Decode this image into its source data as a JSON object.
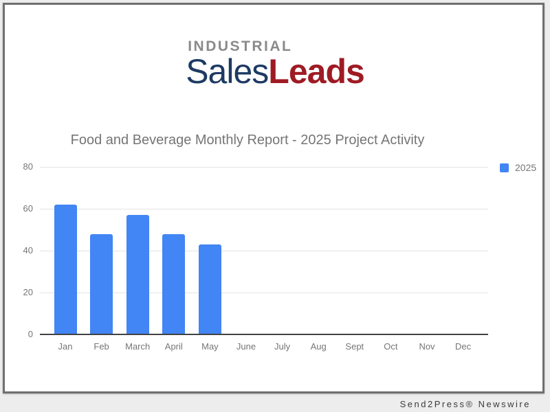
{
  "logo": {
    "top": "INDUSTRIAL",
    "sales": "Sales",
    "leads": "Leads"
  },
  "chart_data": {
    "type": "bar",
    "title": "Food and Beverage Monthly Report - 2025 Project Activity",
    "categories": [
      "Jan",
      "Feb",
      "March",
      "April",
      "May",
      "June",
      "July",
      "Aug",
      "Sept",
      "Oct",
      "Nov",
      "Dec"
    ],
    "series": [
      {
        "name": "2025",
        "values": [
          62,
          48,
          57,
          48,
          43,
          0,
          0,
          0,
          0,
          0,
          0,
          0
        ]
      }
    ],
    "xlabel": "",
    "ylabel": "",
    "ylim": [
      0,
      80
    ],
    "yticks": [
      0,
      20,
      40,
      60,
      80
    ],
    "grid": true,
    "legend_position": "right"
  },
  "footer": {
    "credit": "Send2Press® Newswire"
  },
  "colors": {
    "bar": "#4285f4",
    "text_gray": "#757575",
    "gridline": "#e3e3e3",
    "baseline": "#424242",
    "logo_gray": "#8a8a8a",
    "logo_navy": "#1d3a63",
    "logo_red": "#9e1b24",
    "card_border": "#6f6f6f",
    "page_bg": "#ededed"
  }
}
